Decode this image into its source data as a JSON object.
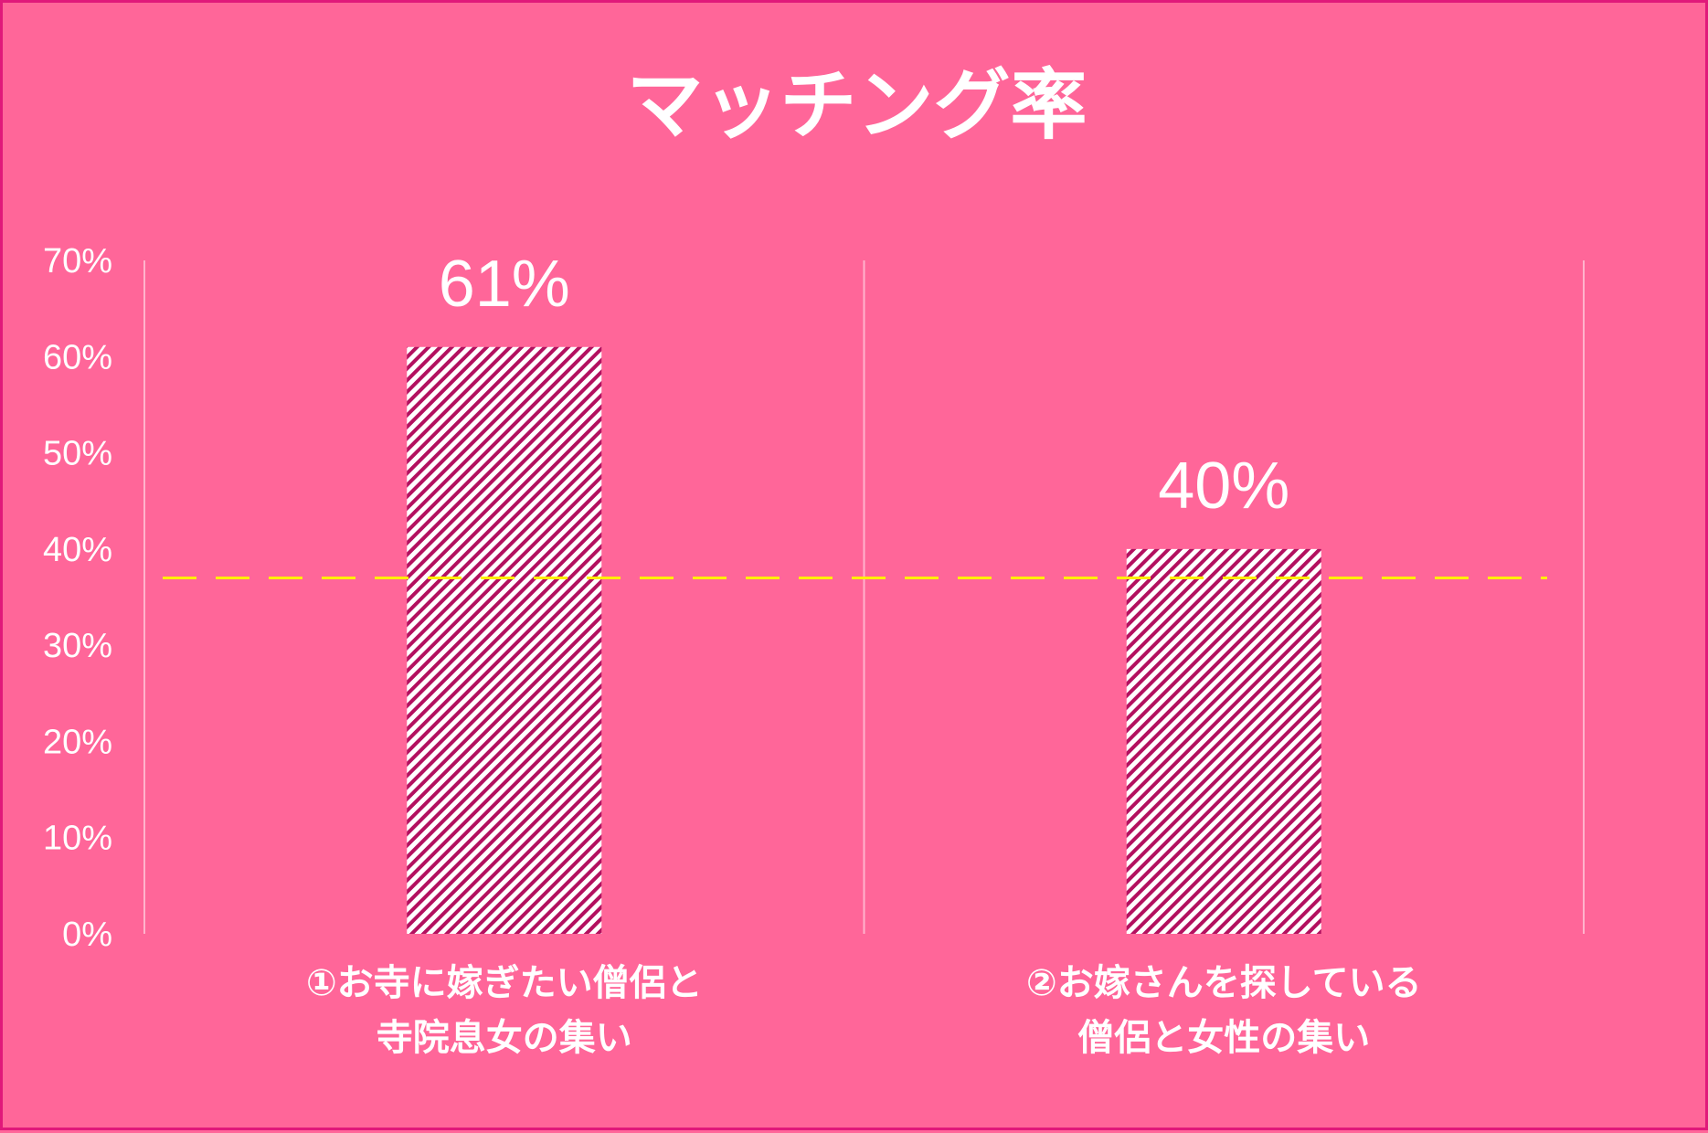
{
  "chart_data": {
    "type": "bar",
    "title": "マッチング率",
    "categories": [
      [
        "①お寺に嫁ぎたい僧侶と",
        "寺院息女の集い"
      ],
      [
        "②お嫁さんを探している",
        "僧侶と女性の集い"
      ]
    ],
    "values": [
      61,
      40
    ],
    "value_labels": [
      "61%",
      "40%"
    ],
    "ylim": [
      0,
      70
    ],
    "yticks": [
      0,
      10,
      20,
      30,
      40,
      50,
      60,
      70
    ],
    "ytick_labels": [
      "0%",
      "10%",
      "20%",
      "30%",
      "40%",
      "50%",
      "60%",
      "70%"
    ],
    "reference_line": 37,
    "grid": "vertical category separators",
    "bar_fill": "white with magenta diagonal hatching",
    "colors": {
      "background": "#ff6699",
      "border": "#e0197a",
      "hatch": "#b3105f",
      "bar_base": "#ffffff",
      "reference_line": "#ffee00",
      "grid": "#ffb3cc",
      "text": "#ffffff"
    }
  }
}
